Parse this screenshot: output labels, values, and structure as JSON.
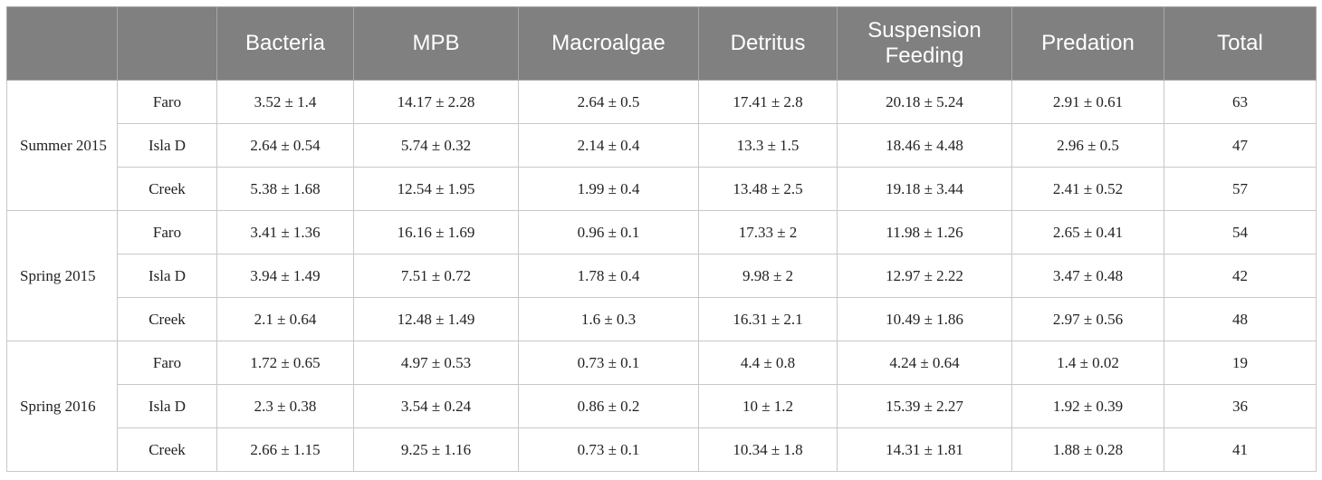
{
  "table": {
    "columns": [
      "",
      "",
      "Bacteria",
      "MPB",
      "Macroalgae",
      "Detritus",
      "Suspension Feeding",
      "Predation",
      "Total"
    ],
    "groups": [
      {
        "season": "Summer 2015",
        "rows": [
          {
            "site": "Faro",
            "values": [
              "3.52 ± 1.4",
              "14.17 ± 2.28",
              "2.64 ± 0.5",
              "17.41 ± 2.8",
              "20.18 ± 5.24",
              "2.91 ± 0.61",
              "63"
            ]
          },
          {
            "site": "Isla D",
            "values": [
              "2.64 ± 0.54",
              "5.74 ± 0.32",
              "2.14 ± 0.4",
              "13.3 ± 1.5",
              "18.46 ± 4.48",
              "2.96 ± 0.5",
              "47"
            ]
          },
          {
            "site": "Creek",
            "values": [
              "5.38 ± 1.68",
              "12.54 ± 1.95",
              "1.99 ± 0.4",
              "13.48 ± 2.5",
              "19.18 ± 3.44",
              "2.41 ± 0.52",
              "57"
            ]
          }
        ]
      },
      {
        "season": "Spring 2015",
        "rows": [
          {
            "site": "Faro",
            "values": [
              "3.41 ± 1.36",
              "16.16 ± 1.69",
              "0.96 ± 0.1",
              "17.33 ± 2",
              "11.98 ± 1.26",
              "2.65 ± 0.41",
              "54"
            ]
          },
          {
            "site": "Isla D",
            "values": [
              "3.94 ± 1.49",
              "7.51 ± 0.72",
              "1.78 ± 0.4",
              "9.98 ± 2",
              "12.97 ± 2.22",
              "3.47 ± 0.48",
              "42"
            ]
          },
          {
            "site": "Creek",
            "values": [
              "2.1 ± 0.64",
              "12.48 ± 1.49",
              "1.6 ± 0.3",
              "16.31 ± 2.1",
              "10.49 ± 1.86",
              "2.97 ± 0.56",
              "48"
            ]
          }
        ]
      },
      {
        "season": "Spring 2016",
        "rows": [
          {
            "site": "Faro",
            "values": [
              "1.72 ± 0.65",
              "4.97 ± 0.53",
              "0.73 ± 0.1",
              "4.4 ± 0.8",
              "4.24 ± 0.64",
              "1.4 ± 0.02",
              "19"
            ]
          },
          {
            "site": "Isla D",
            "values": [
              "2.3 ± 0.38",
              "3.54 ± 0.24",
              "0.86 ± 0.2",
              "10 ± 1.2",
              "15.39 ± 2.27",
              "1.92 ± 0.39",
              "36"
            ]
          },
          {
            "site": "Creek",
            "values": [
              "2.66 ± 1.15",
              "9.25 ± 1.16",
              "0.73 ± 0.1",
              "10.34 ± 1.8",
              "14.31 ± 1.81",
              "1.88 ± 0.28",
              "41"
            ]
          }
        ]
      }
    ]
  }
}
